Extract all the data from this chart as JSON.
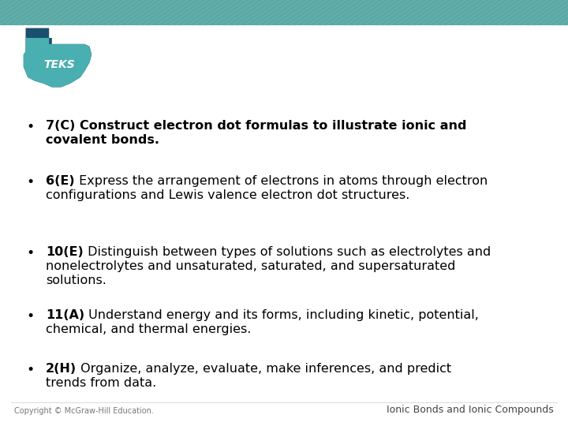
{
  "bg_color": "#ffffff",
  "header_color": "#5ba8a5",
  "stripe_color": "#6cbfbc",
  "teks_dark": "#1a4f6e",
  "teks_mid": "#2a7a8c",
  "teks_light": "#4aafb0",
  "bullet_color": "#000000",
  "bullet_items": [
    {
      "bold": "7(C) Construct electron dot formulas to illustrate ionic and\ncovalent bonds.",
      "normal": ""
    },
    {
      "bold": "6(E)",
      "normal": " Express the arrangement of electrons in atoms through electron\nconfigurations and Lewis valence electron dot structures."
    },
    {
      "bold": "10(E)",
      "normal": " Distinguish between types of solutions such as electrolytes and\nnonelectrolytes and unsaturated, saturated, and supersaturated\nsolutions."
    },
    {
      "bold": "11(A)",
      "normal": " Understand energy and its forms, including kinetic, potential,\nchemical, and thermal energies."
    },
    {
      "bold": "2(H)",
      "normal": " Organize, analyze, evaluate, make inferences, and predict\ntrends from data."
    }
  ],
  "footer_left": "Copyright © McGraw-Hill Education.",
  "footer_right": "Ionic Bonds and Ionic Compounds",
  "font_size_bullet": 11.5,
  "font_size_footer": 7
}
